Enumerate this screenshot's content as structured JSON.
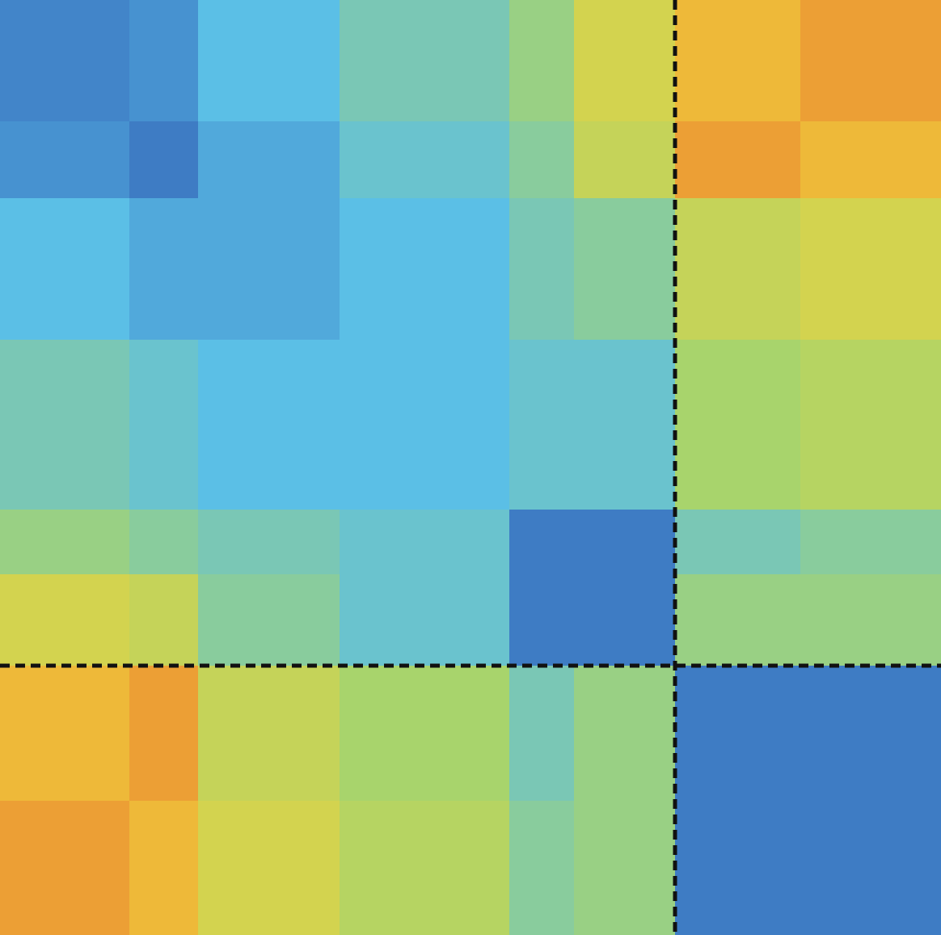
{
  "chart_data": {
    "type": "heatmap",
    "zlim": [
      0,
      1
    ],
    "colormap": [
      "#2a4fae",
      "#5bbfe6",
      "#a8d46c",
      "#f0d23c",
      "#e5532b"
    ],
    "values": [
      [
        0.12,
        0.15,
        0.25,
        0.35,
        0.45,
        0.65,
        0.8,
        0.85
      ],
      [
        0.15,
        0.1,
        0.2,
        0.3,
        0.4,
        0.6,
        0.85,
        0.8
      ],
      [
        0.25,
        0.2,
        0.2,
        0.25,
        0.35,
        0.4,
        0.6,
        0.65
      ],
      [
        0.35,
        0.3,
        0.25,
        0.25,
        0.3,
        0.3,
        0.5,
        0.55
      ],
      [
        0.45,
        0.4,
        0.35,
        0.3,
        0.1,
        0.1,
        0.35,
        0.4
      ],
      [
        0.65,
        0.6,
        0.4,
        0.3,
        0.1,
        0.1,
        0.45,
        0.45
      ],
      [
        0.8,
        0.85,
        0.6,
        0.5,
        0.35,
        0.45,
        0.1,
        0.1
      ],
      [
        0.85,
        0.8,
        0.65,
        0.55,
        0.4,
        0.45,
        0.1,
        0.1
      ]
    ]
  }
}
